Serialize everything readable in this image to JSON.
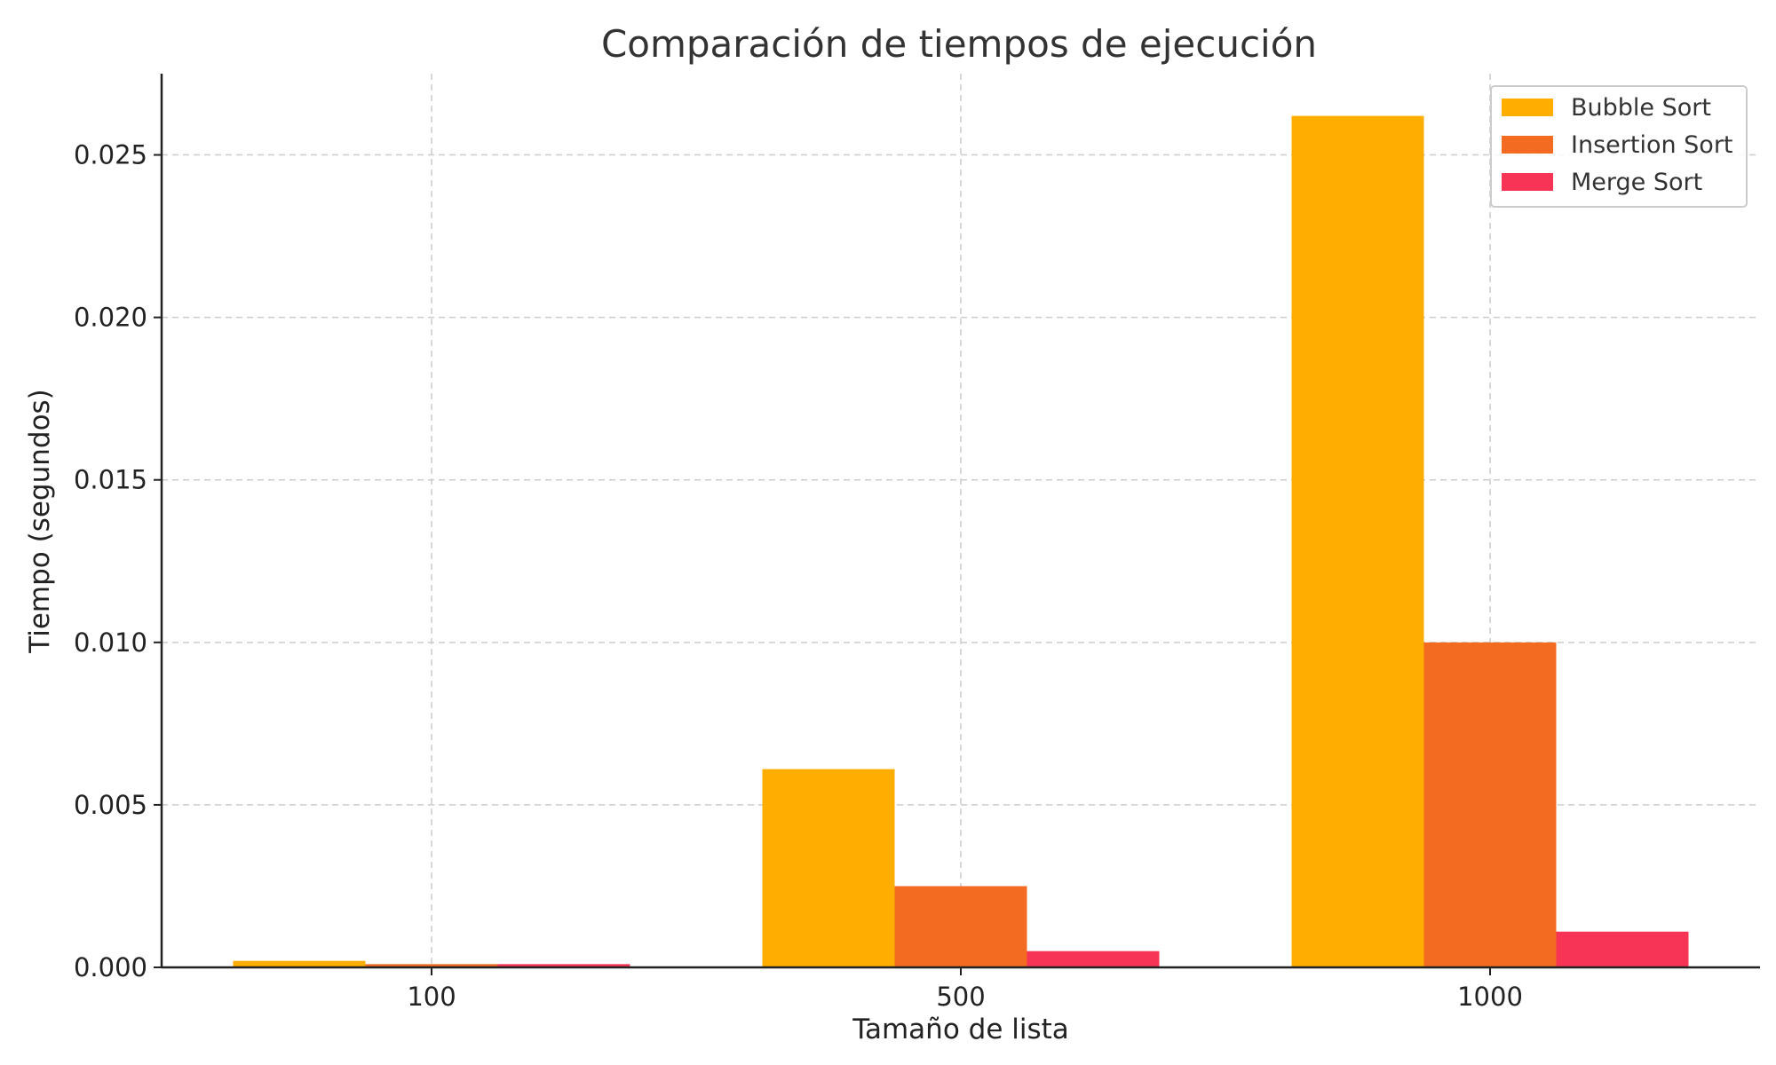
{
  "chart_data": {
    "type": "bar",
    "title": "Comparación de tiempos de ejecución",
    "xlabel": "Tamaño de lista",
    "ylabel": "Tiempo (segundos)",
    "categories": [
      "100",
      "500",
      "1000"
    ],
    "series": [
      {
        "name": "Bubble Sort",
        "color": "#FFAE00",
        "values": [
          0.0002,
          0.0061,
          0.0262
        ]
      },
      {
        "name": "Insertion Sort",
        "color": "#F26B21",
        "values": [
          0.0001,
          0.0025,
          0.01
        ]
      },
      {
        "name": "Merge Sort",
        "color": "#F83456",
        "values": [
          0.0001,
          0.0005,
          0.0011
        ]
      }
    ],
    "ylim": [
      0,
      0.0275
    ],
    "yticks": [
      "0.000",
      "0.005",
      "0.010",
      "0.015",
      "0.020",
      "0.025"
    ],
    "grid": true,
    "legend_position": "top-right"
  }
}
